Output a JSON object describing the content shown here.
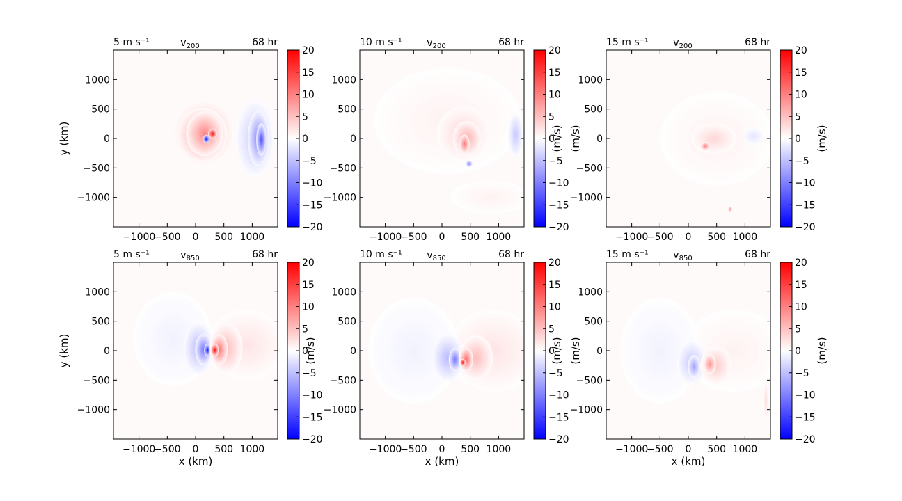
{
  "chart_data": {
    "type": "heatmap",
    "colormap": "bwr",
    "panels": [
      {
        "row": 0,
        "col": 0,
        "left_label": "5 m s⁻¹",
        "var_main": "v",
        "var_sub": "200",
        "time_label": "68 hr",
        "xlabel": "",
        "ylabel": "y (km)",
        "cbar_label": "",
        "features": [
          {
            "cx": 150,
            "cy": 100,
            "rx": 560,
            "ry": 570,
            "v": 4
          },
          {
            "cx": 120,
            "cy": 60,
            "rx": 440,
            "ry": 470,
            "v": 7
          },
          {
            "cx": 160,
            "cy": 80,
            "rx": 330,
            "ry": 380,
            "v": 9
          },
          {
            "cx": 1050,
            "cy": 0,
            "rx": 340,
            "ry": 660,
            "v": -4
          },
          {
            "cx": 1110,
            "cy": 0,
            "rx": 190,
            "ry": 480,
            "v": -9
          },
          {
            "cx": 1160,
            "cy": -20,
            "rx": 90,
            "ry": 280,
            "v": -13
          },
          {
            "cx": 300,
            "cy": 80,
            "rx": 80,
            "ry": 90,
            "v": 18
          },
          {
            "cx": 190,
            "cy": -10,
            "rx": 60,
            "ry": 70,
            "v": -17
          }
        ]
      },
      {
        "row": 0,
        "col": 1,
        "left_label": "10 m s⁻¹",
        "var_main": "v",
        "var_sub": "200",
        "time_label": "68 hr",
        "xlabel": "",
        "ylabel": "",
        "cbar_label": "(m/s)",
        "features": [
          {
            "cx": 100,
            "cy": 300,
            "rx": 1300,
            "ry": 900,
            "v": 1
          },
          {
            "cx": 380,
            "cy": 80,
            "rx": 470,
            "ry": 470,
            "v": 3
          },
          {
            "cx": 440,
            "cy": 0,
            "rx": 250,
            "ry": 300,
            "v": 6
          },
          {
            "cx": 400,
            "cy": -90,
            "rx": 90,
            "ry": 160,
            "v": 10
          },
          {
            "cx": 1300,
            "cy": 60,
            "rx": 130,
            "ry": 370,
            "v": -4
          },
          {
            "cx": 480,
            "cy": -430,
            "rx": 60,
            "ry": 55,
            "v": -9
          },
          {
            "cx": 850,
            "cy": -1000,
            "rx": 700,
            "ry": 280,
            "v": 1
          }
        ]
      },
      {
        "row": 0,
        "col": 2,
        "left_label": "15 m s⁻¹",
        "var_main": "v",
        "var_sub": "200",
        "time_label": "68 hr",
        "xlabel": "",
        "ylabel": "(m/s)",
        "cbar_label": "(m/s)",
        "features": [
          {
            "cx": 500,
            "cy": 0,
            "rx": 1000,
            "ry": 800,
            "v": 1
          },
          {
            "cx": 450,
            "cy": 0,
            "rx": 400,
            "ry": 260,
            "v": 3
          },
          {
            "cx": 300,
            "cy": -130,
            "rx": 80,
            "ry": 70,
            "v": 9
          },
          {
            "cx": 1150,
            "cy": 40,
            "rx": 180,
            "ry": 140,
            "v": -2
          },
          {
            "cx": 740,
            "cy": -1200,
            "rx": 40,
            "ry": 50,
            "v": 8
          }
        ]
      },
      {
        "row": 1,
        "col": 0,
        "left_label": "5 m s⁻¹",
        "var_main": "v",
        "var_sub": "850",
        "time_label": "68 hr",
        "xlabel": "x (km)",
        "ylabel": "y (km)",
        "cbar_label": "",
        "features": [
          {
            "cx": 900,
            "cy": 100,
            "rx": 700,
            "ry": 600,
            "v": 2
          },
          {
            "cx": -400,
            "cy": 200,
            "rx": 700,
            "ry": 800,
            "v": -1
          },
          {
            "cx": 50,
            "cy": 40,
            "rx": 260,
            "ry": 440,
            "v": -5
          },
          {
            "cx": 140,
            "cy": 20,
            "rx": 150,
            "ry": 270,
            "v": -10
          },
          {
            "cx": 210,
            "cy": 10,
            "rx": 60,
            "ry": 110,
            "v": -17
          },
          {
            "cx": 540,
            "cy": 40,
            "rx": 290,
            "ry": 430,
            "v": 5
          },
          {
            "cx": 420,
            "cy": 20,
            "rx": 150,
            "ry": 260,
            "v": 10
          },
          {
            "cx": 340,
            "cy": 10,
            "rx": 70,
            "ry": 110,
            "v": 18
          }
        ]
      },
      {
        "row": 1,
        "col": 1,
        "left_label": "10 m s⁻¹",
        "var_main": "v",
        "var_sub": "850",
        "time_label": "68 hr",
        "xlabel": "x (km)",
        "ylabel": "(m/s)",
        "cbar_label": "(m/s)",
        "features": [
          {
            "cx": 900,
            "cy": 0,
            "rx": 800,
            "ry": 700,
            "v": 2
          },
          {
            "cx": -500,
            "cy": 0,
            "rx": 800,
            "ry": 900,
            "v": -1
          },
          {
            "cx": 100,
            "cy": -120,
            "rx": 270,
            "ry": 400,
            "v": -5
          },
          {
            "cx": 230,
            "cy": -150,
            "rx": 110,
            "ry": 200,
            "v": -10
          },
          {
            "cx": 600,
            "cy": -120,
            "rx": 300,
            "ry": 380,
            "v": 5
          },
          {
            "cx": 430,
            "cy": -150,
            "rx": 120,
            "ry": 200,
            "v": 11
          },
          {
            "cx": 370,
            "cy": -200,
            "rx": 50,
            "ry": 60,
            "v": 18
          }
        ]
      },
      {
        "row": 1,
        "col": 2,
        "left_label": "15 m s⁻¹",
        "var_main": "v",
        "var_sub": "850",
        "time_label": "68 hr",
        "xlabel": "x (km)",
        "ylabel": "(m/s)",
        "cbar_label": "(m/s)",
        "features": [
          {
            "cx": 800,
            "cy": 0,
            "rx": 900,
            "ry": 700,
            "v": 1
          },
          {
            "cx": -500,
            "cy": 0,
            "rx": 700,
            "ry": 900,
            "v": -1
          },
          {
            "cx": 60,
            "cy": -200,
            "rx": 260,
            "ry": 370,
            "v": -4
          },
          {
            "cx": 100,
            "cy": -270,
            "rx": 110,
            "ry": 200,
            "v": -7
          },
          {
            "cx": 480,
            "cy": -250,
            "rx": 270,
            "ry": 320,
            "v": 4
          },
          {
            "cx": 380,
            "cy": -230,
            "rx": 110,
            "ry": 170,
            "v": 8
          },
          {
            "cx": 1370,
            "cy": -850,
            "rx": 40,
            "ry": 350,
            "v": 3
          }
        ]
      }
    ],
    "x_ticks": [
      -1000,
      -500,
      0,
      500,
      1000
    ],
    "y_ticks": [
      -1000,
      -500,
      0,
      500,
      1000
    ],
    "xlim": [
      -1450,
      1450
    ],
    "ylim": [
      -1500,
      1500
    ],
    "cbar_ticks": [
      -20,
      -15,
      -10,
      -5,
      0,
      5,
      10,
      15,
      20
    ],
    "cbar_range": [
      -20,
      20
    ]
  }
}
